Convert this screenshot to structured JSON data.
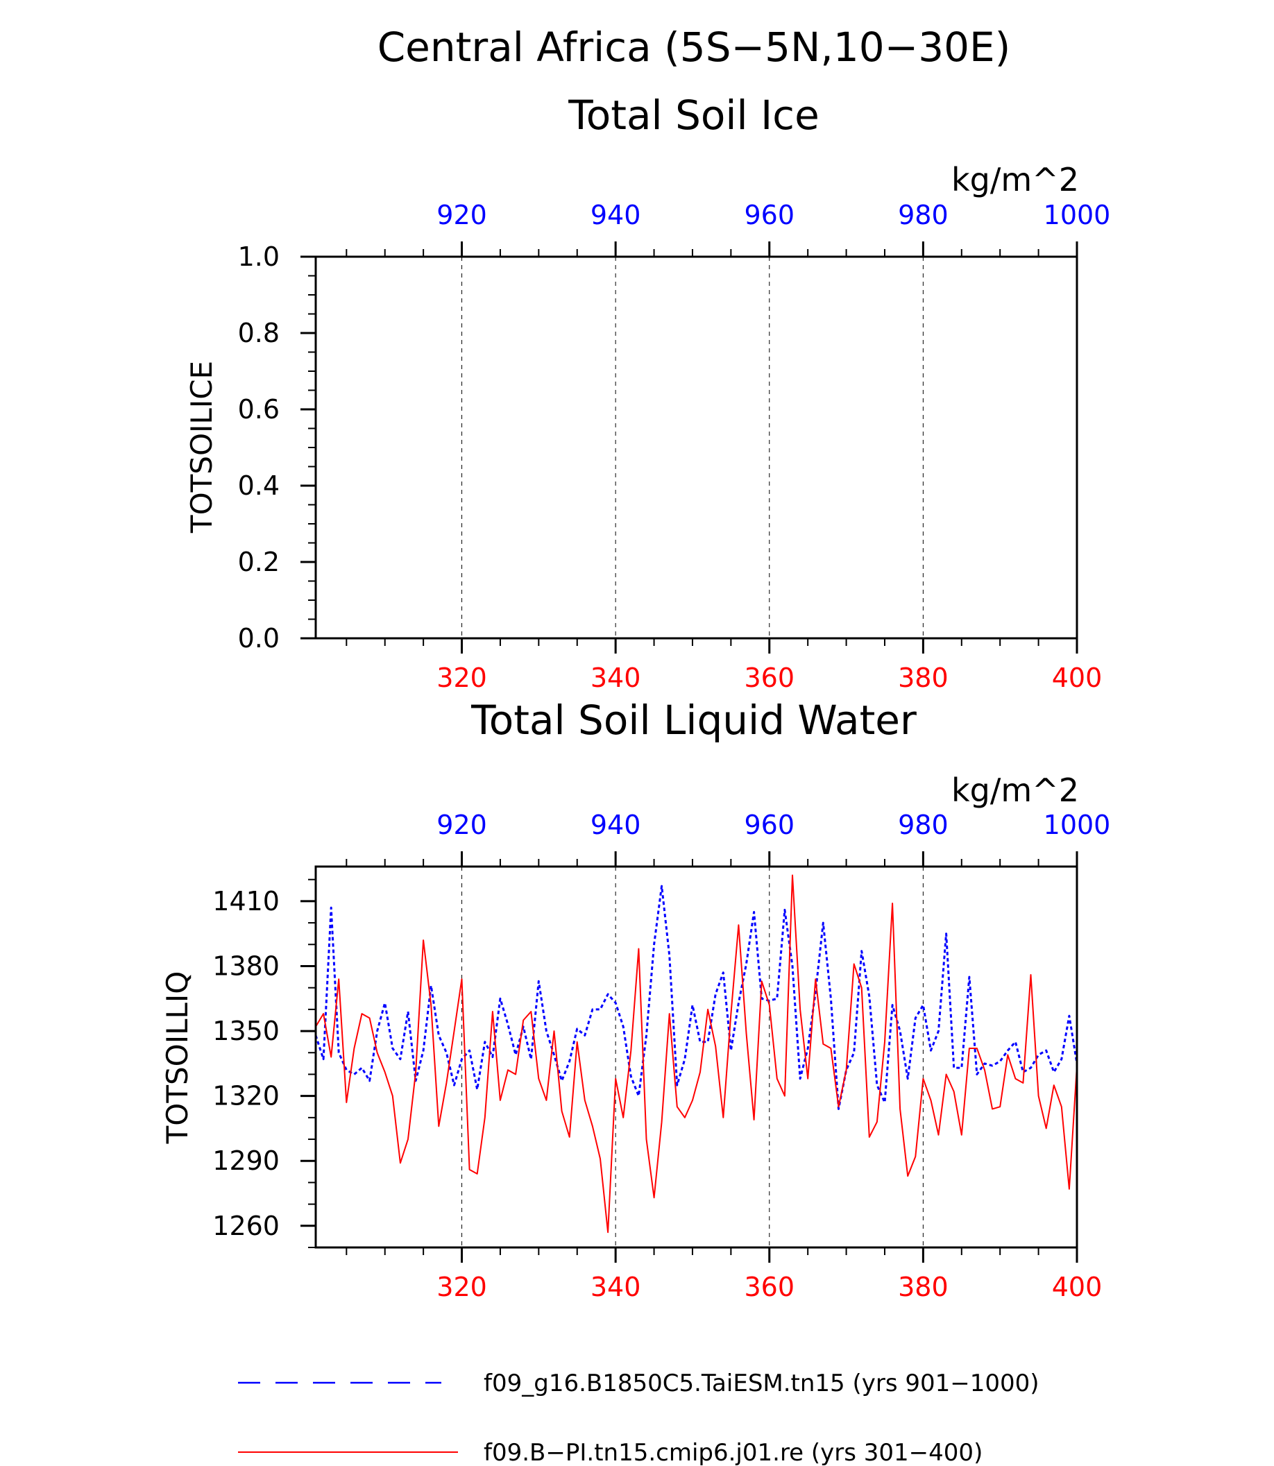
{
  "figure": {
    "title": "Central Africa (5S−5N,10−30E)",
    "legend": [
      {
        "label": "f09_g16.B1850C5.TaiESM.tn15 (yrs 901−1000)",
        "color": "#0000ff",
        "style": "dashed"
      },
      {
        "label": "f09.B−PI.tn15.cmip6.j01.re (yrs 301−400)",
        "color": "#ff0000",
        "style": "solid"
      }
    ]
  },
  "chart_data": [
    {
      "type": "line",
      "title": "Total Soil Ice",
      "ylabel": "TOTSOILICE",
      "units": "kg/m^2",
      "ylim": [
        0,
        1.0
      ],
      "yticks": [
        "0.0",
        "0.2",
        "0.4",
        "0.6",
        "0.8",
        "1.0"
      ],
      "xlim_bottom": [
        301,
        400
      ],
      "xticks_bottom": [
        "320",
        "340",
        "360",
        "380",
        "400"
      ],
      "xlim_top": [
        901,
        1000
      ],
      "xticks_top": [
        "920",
        "940",
        "960",
        "980",
        "1000"
      ],
      "grid": "vertical dashed at major ticks",
      "series": []
    },
    {
      "type": "line",
      "title": "Total Soil Liquid Water",
      "ylabel": "TOTSOILLIQ",
      "units": "kg/m^2",
      "ylim": [
        1250,
        1426
      ],
      "yticks": [
        "1260",
        "1290",
        "1320",
        "1350",
        "1380",
        "1410"
      ],
      "xlim_bottom": [
        301,
        400
      ],
      "xticks_bottom": [
        "320",
        "340",
        "360",
        "380",
        "400"
      ],
      "xlim_top": [
        901,
        1000
      ],
      "xticks_top": [
        "920",
        "940",
        "960",
        "980",
        "1000"
      ],
      "grid": "vertical dashed at major ticks",
      "series": [
        {
          "name": "f09_g16.B1850C5.TaiESM.tn15 (yrs 901−1000)",
          "axis": "top",
          "color": "#0000ff",
          "style": "dashed",
          "x": [
            901,
            902,
            903,
            904,
            905,
            906,
            907,
            908,
            909,
            910,
            911,
            912,
            913,
            914,
            915,
            916,
            917,
            918,
            919,
            920,
            921,
            922,
            923,
            924,
            925,
            926,
            927,
            928,
            929,
            930,
            931,
            932,
            933,
            934,
            935,
            936,
            937,
            938,
            939,
            940,
            941,
            942,
            943,
            944,
            945,
            946,
            947,
            948,
            949,
            950,
            951,
            952,
            953,
            954,
            955,
            956,
            957,
            958,
            959,
            960,
            961,
            962,
            963,
            964,
            965,
            966,
            967,
            968,
            969,
            970,
            971,
            972,
            973,
            974,
            975,
            976,
            977,
            978,
            979,
            980,
            981,
            982,
            983,
            984,
            985,
            986,
            987,
            988,
            989,
            990,
            991,
            992,
            993,
            994,
            995,
            996,
            997,
            998,
            999,
            1000
          ],
          "y": [
            1348,
            1337,
            1407,
            1340,
            1332,
            1330,
            1333,
            1327,
            1350,
            1363,
            1342,
            1337,
            1359,
            1327,
            1341,
            1371,
            1348,
            1340,
            1325,
            1337,
            1341,
            1323,
            1345,
            1338,
            1365,
            1353,
            1339,
            1352,
            1337,
            1373,
            1350,
            1339,
            1327,
            1336,
            1351,
            1348,
            1360,
            1360,
            1367,
            1363,
            1352,
            1329,
            1320,
            1348,
            1390,
            1417,
            1385,
            1325,
            1337,
            1362,
            1345,
            1345,
            1367,
            1377,
            1341,
            1363,
            1381,
            1405,
            1365,
            1364,
            1365,
            1406,
            1380,
            1328,
            1342,
            1368,
            1400,
            1365,
            1314,
            1332,
            1340,
            1387,
            1366,
            1325,
            1317,
            1362,
            1350,
            1328,
            1356,
            1362,
            1341,
            1350,
            1395,
            1333,
            1333,
            1375,
            1330,
            1335,
            1334,
            1336,
            1341,
            1345,
            1331,
            1333,
            1339,
            1341,
            1331,
            1337,
            1357,
            1335
          ]
        },
        {
          "name": "f09.B−PI.tn15.cmip6.j01.re (yrs 301−400)",
          "axis": "bottom",
          "color": "#ff0000",
          "style": "solid",
          "x": [
            301,
            302,
            303,
            304,
            305,
            306,
            307,
            308,
            309,
            310,
            311,
            312,
            313,
            314,
            315,
            316,
            317,
            318,
            319,
            320,
            321,
            322,
            323,
            324,
            325,
            326,
            327,
            328,
            329,
            330,
            331,
            332,
            333,
            334,
            335,
            336,
            337,
            338,
            339,
            340,
            341,
            342,
            343,
            344,
            345,
            346,
            347,
            348,
            349,
            350,
            351,
            352,
            353,
            354,
            355,
            356,
            357,
            358,
            359,
            360,
            361,
            362,
            363,
            364,
            365,
            366,
            367,
            368,
            369,
            370,
            371,
            372,
            373,
            374,
            375,
            376,
            377,
            378,
            379,
            380,
            381,
            382,
            383,
            384,
            385,
            386,
            387,
            388,
            389,
            390,
            391,
            392,
            393,
            394,
            395,
            396,
            397,
            398,
            399,
            400
          ],
          "y": [
            1352,
            1358,
            1338,
            1374,
            1317,
            1342,
            1358,
            1356,
            1340,
            1331,
            1320,
            1289,
            1300,
            1331,
            1392,
            1362,
            1306,
            1326,
            1350,
            1374,
            1286,
            1284,
            1310,
            1359,
            1318,
            1332,
            1330,
            1355,
            1359,
            1328,
            1318,
            1350,
            1313,
            1301,
            1345,
            1318,
            1306,
            1291,
            1257,
            1328,
            1310,
            1341,
            1388,
            1300,
            1273,
            1308,
            1358,
            1315,
            1310,
            1318,
            1331,
            1360,
            1343,
            1310,
            1358,
            1399,
            1349,
            1309,
            1373,
            1362,
            1328,
            1320,
            1422,
            1360,
            1328,
            1374,
            1344,
            1342,
            1315,
            1332,
            1381,
            1370,
            1301,
            1308,
            1345,
            1409,
            1314,
            1283,
            1292,
            1328,
            1318,
            1302,
            1330,
            1322,
            1302,
            1342,
            1342,
            1332,
            1314,
            1315,
            1339,
            1328,
            1326,
            1376,
            1320,
            1305,
            1325,
            1315,
            1277,
            1334
          ]
        }
      ]
    }
  ]
}
